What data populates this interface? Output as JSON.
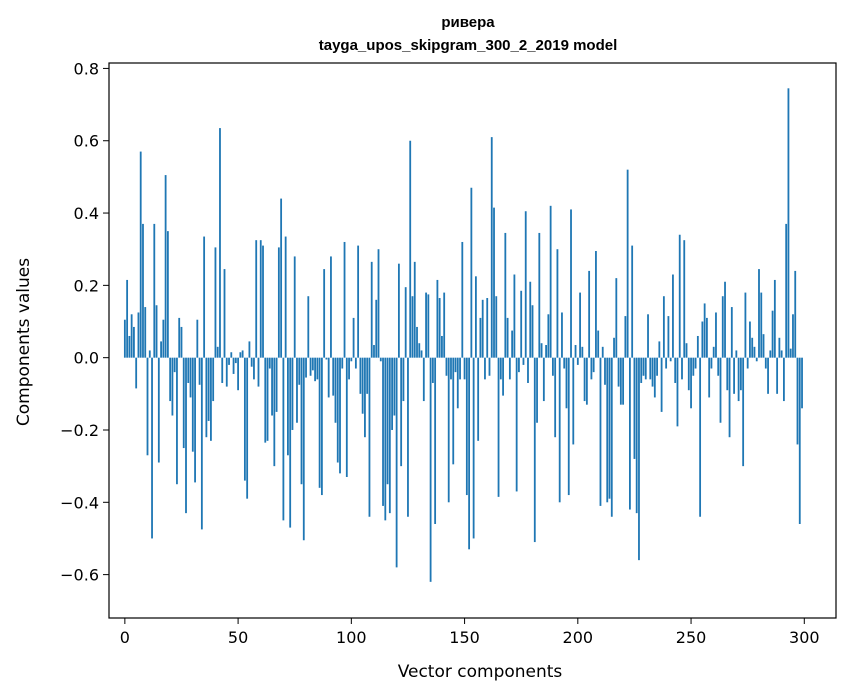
{
  "chart_data": {
    "type": "bar",
    "title_line1": "ривера",
    "title_line2": "tayga_upos_skipgram_300_2_2019 model",
    "xlabel": "Vector components",
    "ylabel": "Components values",
    "xlim": [
      -7,
      314
    ],
    "ylim": [
      -0.72,
      0.815
    ],
    "xticks": [
      0,
      50,
      100,
      150,
      200,
      250,
      300
    ],
    "xtick_labels": [
      "0",
      "50",
      "100",
      "150",
      "200",
      "250",
      "300"
    ],
    "yticks": [
      -0.6,
      -0.4,
      -0.2,
      0.0,
      0.2,
      0.4,
      0.6,
      0.8
    ],
    "ytick_labels": [
      "−0.6",
      "−0.4",
      "−0.2",
      "0.0",
      "0.2",
      "0.4",
      "0.6",
      "0.8"
    ],
    "bar_color": "#1f77b4",
    "values": [
      0.105,
      0.215,
      0.06,
      0.12,
      0.085,
      -0.085,
      0.125,
      0.57,
      0.37,
      0.14,
      -0.27,
      0.02,
      -0.5,
      0.37,
      0.145,
      -0.29,
      0.045,
      0.105,
      0.505,
      0.35,
      -0.12,
      -0.16,
      -0.04,
      -0.35,
      0.11,
      0.085,
      -0.25,
      -0.43,
      -0.07,
      -0.11,
      -0.26,
      -0.345,
      0.105,
      -0.075,
      -0.475,
      0.335,
      -0.22,
      -0.175,
      -0.23,
      -0.12,
      0.305,
      0.03,
      0.635,
      -0.07,
      0.245,
      -0.08,
      -0.02,
      0.015,
      -0.045,
      -0.015,
      -0.09,
      0.015,
      0.02,
      -0.34,
      -0.39,
      0.045,
      -0.025,
      -0.06,
      0.325,
      -0.08,
      0.325,
      0.31,
      -0.235,
      -0.23,
      -0.03,
      -0.16,
      -0.3,
      -0.15,
      0.305,
      0.44,
      -0.45,
      0.335,
      -0.27,
      -0.47,
      -0.2,
      0.28,
      -0.18,
      -0.075,
      -0.35,
      -0.505,
      -0.055,
      0.17,
      -0.05,
      -0.035,
      -0.065,
      -0.06,
      -0.36,
      -0.38,
      0.245,
      -0.005,
      -0.11,
      0.28,
      -0.105,
      -0.18,
      -0.29,
      -0.32,
      -0.03,
      0.32,
      -0.33,
      -0.06,
      -0.01,
      0.11,
      -0.03,
      0.31,
      -0.1,
      -0.155,
      -0.22,
      -0.1,
      -0.44,
      0.265,
      0.035,
      0.16,
      0.3,
      -0.01,
      -0.41,
      -0.45,
      -0.35,
      -0.43,
      -0.2,
      -0.16,
      -0.58,
      0.26,
      -0.3,
      -0.12,
      0.195,
      -0.44,
      0.6,
      0.17,
      0.265,
      0.085,
      0.04,
      0.02,
      -0.12,
      0.18,
      0.175,
      -0.62,
      -0.07,
      -0.46,
      0.215,
      0.165,
      0.06,
      0.18,
      -0.05,
      -0.4,
      -0.06,
      -0.295,
      -0.04,
      -0.14,
      -0.06,
      0.32,
      -0.06,
      -0.38,
      -0.53,
      0.47,
      -0.5,
      0.225,
      -0.23,
      0.11,
      0.16,
      -0.06,
      0.165,
      -0.05,
      0.61,
      0.415,
      0.17,
      -0.385,
      -0.06,
      -0.105,
      0.345,
      0.11,
      -0.06,
      0.075,
      0.23,
      -0.37,
      -0.04,
      0.185,
      -0.02,
      0.405,
      -0.07,
      0.21,
      0.145,
      -0.51,
      -0.18,
      0.345,
      0.04,
      -0.12,
      0.035,
      0.12,
      0.42,
      -0.05,
      -0.22,
      0.3,
      -0.4,
      0.125,
      -0.03,
      -0.14,
      -0.38,
      0.41,
      -0.24,
      0.035,
      -0.02,
      0.18,
      0.03,
      -0.12,
      -0.13,
      0.24,
      -0.06,
      -0.04,
      0.295,
      0.075,
      -0.41,
      0.03,
      -0.075,
      -0.4,
      -0.39,
      -0.44,
      0.055,
      0.22,
      -0.08,
      -0.13,
      -0.13,
      0.115,
      0.52,
      -0.42,
      0.31,
      -0.28,
      -0.43,
      -0.56,
      -0.07,
      -0.05,
      -0.06,
      0.12,
      -0.06,
      -0.08,
      -0.11,
      -0.05,
      0.045,
      -0.15,
      0.17,
      -0.03,
      0.115,
      -0.01,
      0.23,
      -0.07,
      -0.19,
      0.34,
      -0.06,
      0.325,
      0.04,
      -0.09,
      -0.14,
      -0.05,
      -0.03,
      0.06,
      -0.44,
      0.1,
      0.15,
      0.11,
      -0.11,
      -0.03,
      0.03,
      0.125,
      -0.05,
      -0.18,
      0.17,
      0.21,
      -0.09,
      -0.22,
      0.14,
      -0.1,
      0.02,
      -0.12,
      -0.09,
      -0.3,
      0.18,
      -0.03,
      0.1,
      0.055,
      0.03,
      -0.01,
      0.245,
      0.18,
      0.065,
      -0.03,
      -0.1,
      0.02,
      0.13,
      0.215,
      -0.1,
      0.055,
      0.02,
      -0.12,
      0.37,
      0.745,
      0.025,
      0.12,
      0.24,
      -0.24,
      -0.46,
      -0.14
    ]
  }
}
